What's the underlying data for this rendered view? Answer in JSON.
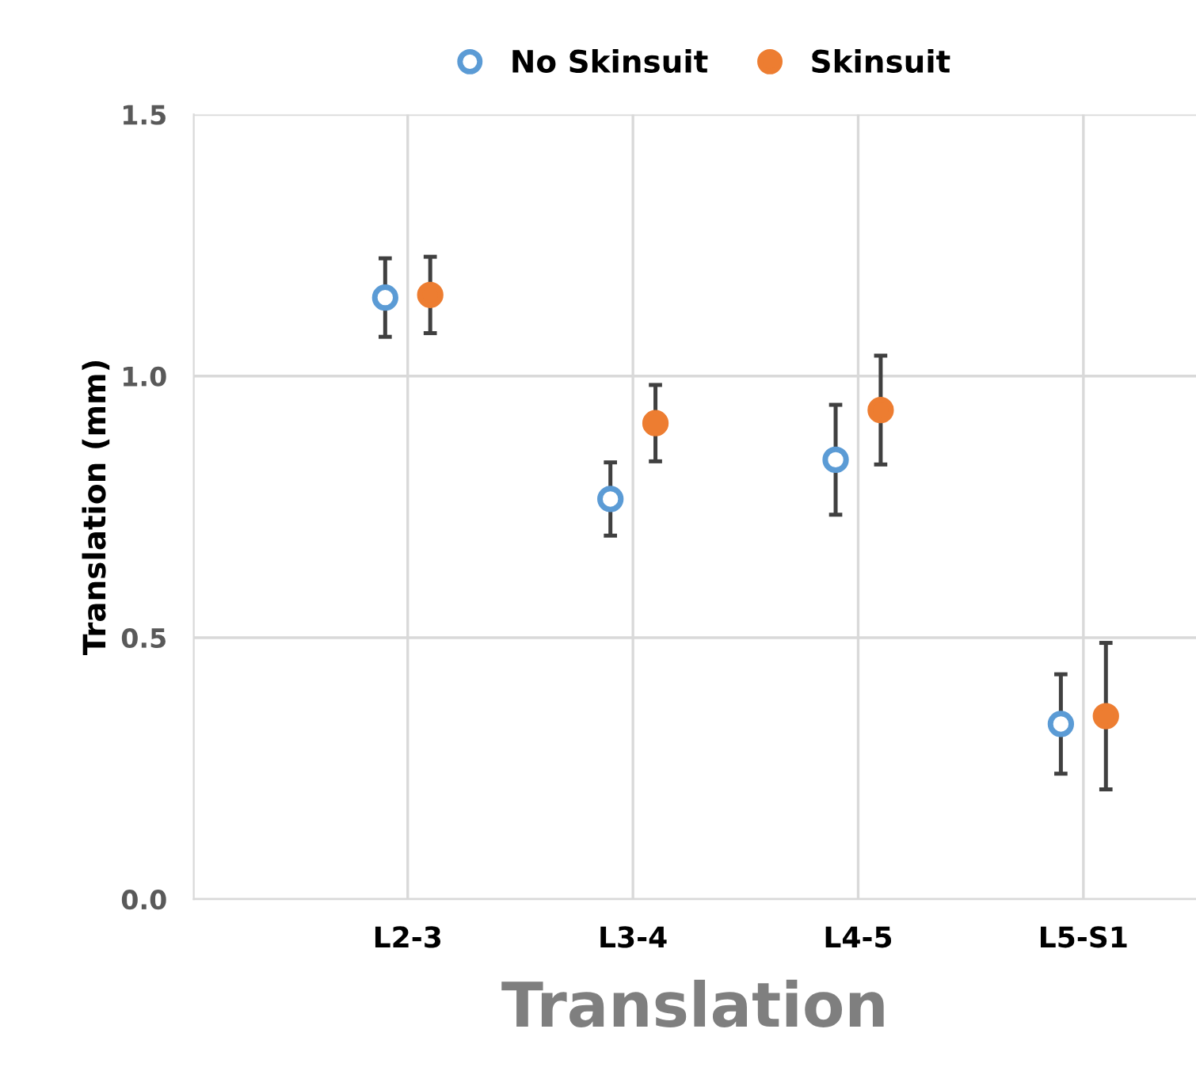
{
  "chart_data": {
    "type": "scatter",
    "xlabel": "Translation",
    "ylabel": "Translation (mm)",
    "categories": [
      "L2-3",
      "L3-4",
      "L4-5",
      "L5-S1"
    ],
    "series": [
      {
        "name": "No Skinsuit",
        "color": "#5b9bd5",
        "values": [
          1.15,
          0.765,
          0.84,
          0.335
        ],
        "errors": [
          0.075,
          0.07,
          0.105,
          0.095
        ]
      },
      {
        "name": "Skinsuit",
        "color": "#ed7d31",
        "values": [
          1.155,
          0.91,
          0.935,
          0.35
        ],
        "errors": [
          0.073,
          0.073,
          0.104,
          0.14
        ]
      }
    ],
    "ylim": [
      0,
      1.5
    ],
    "yticks": [
      {
        "value": 0,
        "label": "0.0"
      },
      {
        "value": 0.5,
        "label": "0.5"
      },
      {
        "value": 1.0,
        "label": "1.0"
      },
      {
        "value": 1.5,
        "label": "1.5"
      }
    ],
    "grid": true,
    "legend": "top",
    "marker": "circle"
  }
}
